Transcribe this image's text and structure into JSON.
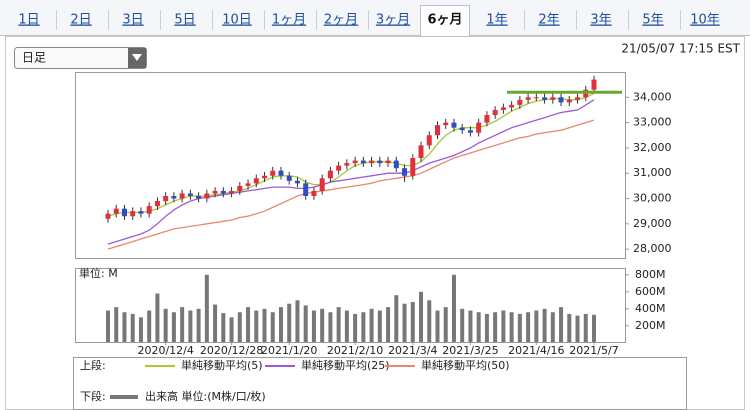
{
  "tabs": [
    "1日",
    "2日",
    "3日",
    "5日",
    "10日",
    "1ヶ月",
    "2ヶ月",
    "3ヶ月",
    "6ヶ月",
    "1年",
    "2年",
    "3年",
    "5年",
    "10年"
  ],
  "selected_tab": "6ヶ月",
  "dropdown": "日足",
  "timestamp": "21/05/07 17:15 EST",
  "chart_data": {
    "type": "candlestick",
    "categories": [
      null,
      null,
      null,
      null,
      null,
      null,
      null,
      "2020/12/4",
      null,
      null,
      null,
      null,
      null,
      null,
      null,
      "2020/12/28",
      null,
      null,
      null,
      null,
      null,
      null,
      "2021/1/20",
      null,
      null,
      null,
      null,
      null,
      null,
      null,
      "2021/2/10",
      null,
      null,
      null,
      null,
      null,
      null,
      "2021/3/4",
      null,
      null,
      null,
      null,
      null,
      null,
      "2021/3/25",
      null,
      null,
      null,
      null,
      null,
      null,
      null,
      "2021/4/16",
      null,
      null,
      null,
      null,
      null,
      null,
      "2021/5/7"
    ],
    "open": [
      29200,
      29400,
      29600,
      29300,
      29500,
      29400,
      29700,
      29900,
      30100,
      30000,
      30200,
      30100,
      30000,
      30200,
      30300,
      30200,
      30300,
      30500,
      30600,
      30800,
      30900,
      31100,
      30900,
      30700,
      30600,
      30100,
      30300,
      30800,
      31100,
      31300,
      31400,
      31500,
      31400,
      31500,
      31400,
      31500,
      31200,
      30900,
      31600,
      32100,
      32500,
      32900,
      33000,
      32800,
      32700,
      32600,
      33000,
      33300,
      33500,
      33600,
      33700,
      33900,
      34000,
      34000,
      33900,
      34000,
      33800,
      33900,
      34000,
      34300
    ],
    "high": [
      29550,
      29750,
      29750,
      29650,
      29650,
      29850,
      30050,
      30250,
      30250,
      30350,
      30350,
      30250,
      30350,
      30450,
      30450,
      30450,
      30650,
      30750,
      30950,
      31050,
      31250,
      31250,
      31050,
      30850,
      30750,
      30450,
      30950,
      31250,
      31450,
      31550,
      31650,
      31650,
      31650,
      31650,
      31650,
      31650,
      31350,
      31750,
      32250,
      32650,
      33050,
      33150,
      33150,
      32950,
      32850,
      33150,
      33450,
      33650,
      33750,
      33850,
      34050,
      34150,
      34150,
      34150,
      34150,
      34150,
      34050,
      34150,
      34450,
      34850
    ],
    "low": [
      29050,
      29250,
      29150,
      29150,
      29250,
      29250,
      29550,
      29750,
      29850,
      29850,
      29950,
      29850,
      29850,
      30050,
      30050,
      30050,
      30150,
      30350,
      30450,
      30650,
      30750,
      30750,
      30550,
      30450,
      29950,
      29950,
      30150,
      30650,
      30950,
      31150,
      31250,
      31250,
      31250,
      31250,
      31250,
      31050,
      30650,
      30750,
      31450,
      31950,
      32350,
      32750,
      32650,
      32550,
      32450,
      32450,
      32850,
      33150,
      33350,
      33450,
      33550,
      33750,
      33850,
      33750,
      33750,
      33650,
      33650,
      33750,
      33850,
      34150
    ],
    "close": [
      29400,
      29600,
      29300,
      29500,
      29400,
      29700,
      29900,
      30100,
      30000,
      30200,
      30100,
      30000,
      30200,
      30300,
      30200,
      30300,
      30500,
      30600,
      30800,
      30900,
      31100,
      30900,
      30700,
      30600,
      30100,
      30300,
      30800,
      31100,
      31300,
      31400,
      31500,
      31400,
      31500,
      31400,
      31500,
      31200,
      30900,
      31600,
      32100,
      32500,
      32900,
      33000,
      32800,
      32700,
      32600,
      33000,
      33300,
      33500,
      33600,
      33700,
      33900,
      34000,
      34000,
      33900,
      34000,
      33800,
      33900,
      34000,
      34300,
      34700
    ],
    "up_color": "#e0303a",
    "down_color": "#2f4fc0",
    "series": [
      {
        "name": "単純移動平均(5)",
        "color": "#a8c838",
        "values": [
          29300,
          29400,
          29450,
          29450,
          29450,
          29500,
          29600,
          29750,
          29900,
          30000,
          30100,
          30100,
          30100,
          30150,
          30200,
          30250,
          30300,
          30400,
          30550,
          30700,
          30850,
          30900,
          30900,
          30850,
          30650,
          30550,
          30550,
          30650,
          30850,
          31100,
          31300,
          31400,
          31450,
          31450,
          31450,
          31400,
          31300,
          31300,
          31450,
          31750,
          32150,
          32500,
          32700,
          32800,
          32800,
          32800,
          32900,
          33050,
          33250,
          33450,
          33600,
          33750,
          33850,
          33900,
          33950,
          33950,
          33900,
          33900,
          34000,
          34150
        ]
      },
      {
        "name": "単純移動平均(25)",
        "color": "#9a5bd8",
        "values": [
          28200,
          28300,
          28400,
          28500,
          28600,
          28750,
          29000,
          29300,
          29550,
          29750,
          29900,
          30000,
          30050,
          30100,
          30150,
          30200,
          30250,
          30300,
          30350,
          30400,
          30450,
          30450,
          30450,
          30400,
          30400,
          30450,
          30550,
          30650,
          30700,
          30750,
          30800,
          30850,
          30900,
          30950,
          31000,
          31000,
          31000,
          31100,
          31250,
          31400,
          31500,
          31600,
          31700,
          31850,
          32000,
          32200,
          32350,
          32500,
          32650,
          32800,
          32900,
          33000,
          33100,
          33200,
          33300,
          33400,
          33450,
          33500,
          33700,
          33900
        ]
      },
      {
        "name": "単純移動平均(50)",
        "color": "#e8896a",
        "values": [
          28000,
          28100,
          28200,
          28300,
          28400,
          28500,
          28600,
          28700,
          28800,
          28850,
          28900,
          28950,
          29000,
          29050,
          29100,
          29150,
          29250,
          29300,
          29400,
          29500,
          29650,
          29800,
          29950,
          30100,
          30200,
          30250,
          30300,
          30350,
          30400,
          30450,
          30500,
          30550,
          30600,
          30700,
          30750,
          30800,
          30850,
          30900,
          31000,
          31150,
          31300,
          31450,
          31600,
          31700,
          31800,
          31900,
          32000,
          32100,
          32200,
          32300,
          32400,
          32450,
          32550,
          32600,
          32650,
          32700,
          32800,
          32900,
          33000,
          33100
        ]
      }
    ],
    "hline": {
      "value": 34200,
      "color": "#6aa62e"
    },
    "ylim": [
      27650,
      35000
    ],
    "yticks": [
      {
        "value": 28000,
        "label": "28,000"
      },
      {
        "value": 29000,
        "label": "29,000"
      },
      {
        "value": 30000,
        "label": "30,000"
      },
      {
        "value": 31000,
        "label": "31,000"
      },
      {
        "value": 32000,
        "label": "32,000"
      },
      {
        "value": 33000,
        "label": "33,000"
      },
      {
        "value": 34000,
        "label": "34,000"
      }
    ],
    "volume": {
      "name": "出来高 単位:(M株/口/枚)",
      "color": "#777777",
      "unit_label": "単位: M",
      "values": [
        380,
        420,
        360,
        340,
        300,
        380,
        580,
        400,
        360,
        420,
        380,
        400,
        800,
        450,
        350,
        300,
        360,
        420,
        380,
        400,
        360,
        420,
        460,
        500,
        440,
        380,
        400,
        360,
        420,
        380,
        340,
        360,
        400,
        380,
        420,
        560,
        460,
        480,
        600,
        500,
        380,
        420,
        800,
        400,
        380,
        360,
        340,
        360,
        380,
        360,
        340,
        360,
        380,
        400,
        360,
        420,
        340,
        320,
        340,
        330
      ],
      "ylim": [
        10,
        880
      ],
      "yticks": [
        {
          "value": 200,
          "label": "200M"
        },
        {
          "value": 400,
          "label": "400M"
        },
        {
          "value": 600,
          "label": "600M"
        },
        {
          "value": 800,
          "label": "800M"
        }
      ]
    },
    "legend_upper": "上段:",
    "legend_lower": "下段:"
  }
}
